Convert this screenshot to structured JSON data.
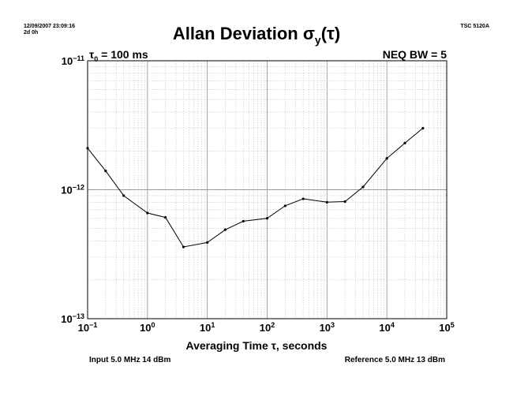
{
  "header": {
    "timestamp_line1": "12/09/2007 23:09:16",
    "timestamp_line2": "2d 0h",
    "instrument": "TSC 5120A",
    "title_main": "Allan Deviation σ",
    "title_sub": "y",
    "title_tail": "(τ)"
  },
  "annotations": {
    "tau0_symbol": "τ",
    "tau0_sub": "0",
    "tau0_value": " = 100 ms",
    "neq_bw": "NEQ BW = 5"
  },
  "footer": {
    "input": "Input 5.0 MHz 14 dBm",
    "reference": "Reference 5.0 MHz 13 dBm"
  },
  "chart_data": {
    "type": "line",
    "title": "Allan Deviation σy(τ)",
    "xlabel": "Averaging Time τ, seconds",
    "ylabel": "",
    "x_scale": "log",
    "y_scale": "log",
    "xlim": [
      0.1,
      100000
    ],
    "ylim": [
      1e-13,
      1e-11
    ],
    "grid": true,
    "x_tick_labels": [
      {
        "base": "10",
        "exp": "−1"
      },
      {
        "base": "10",
        "exp": "0"
      },
      {
        "base": "10",
        "exp": "1"
      },
      {
        "base": "10",
        "exp": "2"
      },
      {
        "base": "10",
        "exp": "3"
      },
      {
        "base": "10",
        "exp": "4"
      },
      {
        "base": "10",
        "exp": "5"
      }
    ],
    "y_tick_labels": [
      {
        "base": "10",
        "exp": "−11"
      },
      {
        "base": "10",
        "exp": "−12"
      },
      {
        "base": "10",
        "exp": "−13"
      }
    ],
    "series": [
      {
        "color": "#000000",
        "x": [
          0.1,
          0.2,
          0.4,
          1,
          2,
          4,
          10,
          20,
          40,
          100,
          200,
          400,
          1000,
          2000,
          4000,
          10000,
          20000,
          40000
        ],
        "y": [
          2.1e-12,
          1.4e-12,
          9e-13,
          6.6e-13,
          6.1e-13,
          3.6e-13,
          3.9e-13,
          4.9e-13,
          5.7e-13,
          6e-13,
          7.5e-13,
          8.5e-13,
          8e-13,
          8.1e-13,
          1.05e-12,
          1.75e-12,
          2.3e-12,
          3e-12
        ]
      }
    ]
  }
}
